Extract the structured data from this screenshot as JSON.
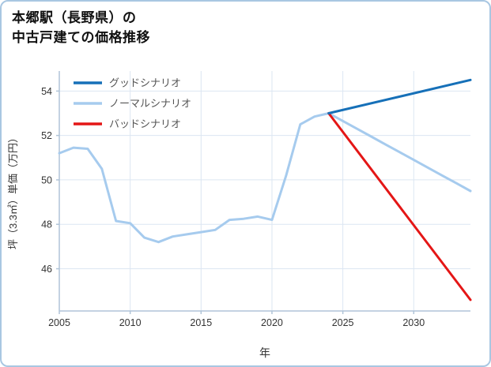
{
  "title": {
    "line1": "本郷駅（長野県）の",
    "line2": "中古戸建ての価格推移"
  },
  "chart_data": {
    "type": "line",
    "title": "本郷駅（長野県）の中古戸建ての価格推移",
    "xlabel": "年",
    "ylabel": "坪（3.3㎡）単価（万円）",
    "xlim": [
      2005,
      2034
    ],
    "ylim": [
      44.1,
      54.9
    ],
    "xticks": [
      2005,
      2010,
      2015,
      2020,
      2025,
      2030
    ],
    "yticks": [
      46,
      48,
      50,
      52,
      54
    ],
    "grid": true,
    "legend_position": "top-left",
    "colors": {
      "grid": "#dce6f2",
      "spine": "#b0c4d8",
      "tick_label": "#333333",
      "legend_text": "#555555"
    },
    "series": [
      {
        "name": "グッドシナリオ",
        "color": "#1670b8",
        "z": 3,
        "x": [
          2024,
          2034
        ],
        "y": [
          53.0,
          54.5
        ]
      },
      {
        "name": "ノーマルシナリオ",
        "color": "#a6cbee",
        "z": 1,
        "x": [
          2005,
          2006,
          2007,
          2008,
          2009,
          2010,
          2011,
          2012,
          2013,
          2014,
          2015,
          2016,
          2017,
          2018,
          2019,
          2020,
          2021,
          2022,
          2023,
          2024,
          2025,
          2026,
          2027,
          2028,
          2029,
          2030,
          2031,
          2032,
          2033,
          2034
        ],
        "y": [
          51.2,
          51.45,
          51.4,
          50.5,
          48.15,
          48.05,
          47.4,
          47.2,
          47.45,
          47.55,
          47.65,
          47.75,
          48.2,
          48.25,
          48.35,
          48.2,
          50.2,
          52.5,
          52.85,
          53.0,
          52.65,
          52.3,
          51.95,
          51.6,
          51.25,
          50.9,
          50.55,
          50.2,
          49.85,
          49.5
        ]
      },
      {
        "name": "バッドシナリオ",
        "color": "#e41616",
        "z": 2,
        "x": [
          2024,
          2034
        ],
        "y": [
          53.0,
          44.6
        ]
      }
    ]
  }
}
